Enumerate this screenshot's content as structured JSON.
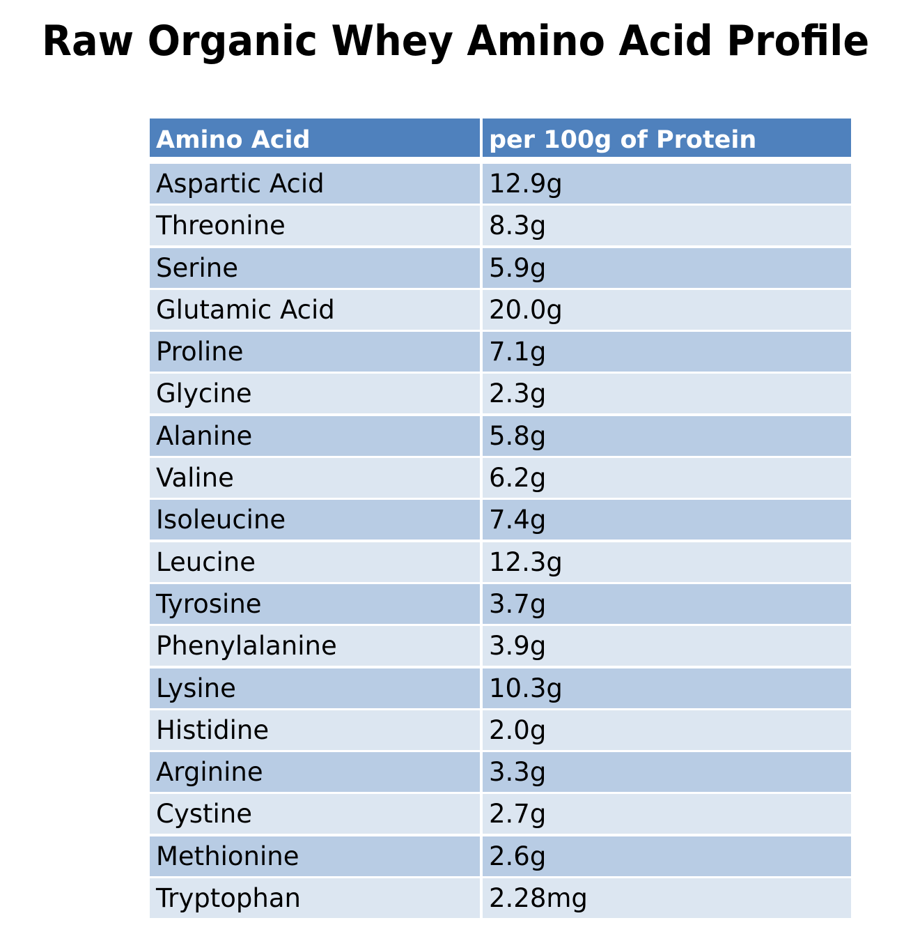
{
  "title": "Raw Organic Whey Amino Acid Profile",
  "colors": {
    "header": "#4F81BD",
    "row_dark": "#B8CCE4",
    "row_light": "#DCE6F1"
  },
  "table": {
    "headers": [
      "Amino Acid",
      "per 100g of Protein"
    ],
    "rows": [
      [
        "Aspartic Acid",
        "12.9g"
      ],
      [
        "Threonine",
        "8.3g"
      ],
      [
        "Serine",
        "5.9g"
      ],
      [
        "Glutamic Acid",
        "20.0g"
      ],
      [
        "Proline",
        "7.1g"
      ],
      [
        "Glycine",
        "2.3g"
      ],
      [
        "Alanine",
        "5.8g"
      ],
      [
        "Valine",
        "6.2g"
      ],
      [
        "Isoleucine",
        "7.4g"
      ],
      [
        "Leucine",
        "12.3g"
      ],
      [
        "Tyrosine",
        "3.7g"
      ],
      [
        "Phenylalanine",
        "3.9g"
      ],
      [
        "Lysine",
        "10.3g"
      ],
      [
        "Histidine",
        "2.0g"
      ],
      [
        "Arginine",
        "3.3g"
      ],
      [
        "Cystine",
        "2.7g"
      ],
      [
        "Methionine",
        "2.6g"
      ],
      [
        "Tryptophan",
        "2.28mg"
      ]
    ]
  }
}
